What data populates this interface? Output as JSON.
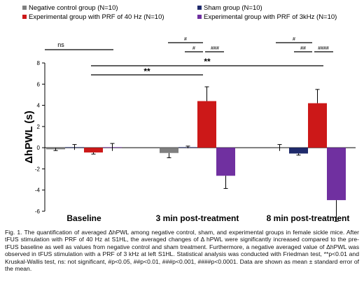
{
  "chart_data": {
    "type": "bar",
    "ylabel": "ΔhPWL (s)",
    "ylim": [
      -6,
      8
    ],
    "yticks": [
      -6,
      -4,
      -2,
      0,
      2,
      4,
      6,
      8
    ],
    "grid": false,
    "legend_position": "top",
    "categories": [
      "Baseline",
      "3 min post-treatment",
      "8 min post-treatment"
    ],
    "series": [
      {
        "name": "Negative control group (N=10)",
        "color": "#7f7f7f",
        "values": [
          -0.15,
          -0.5,
          0.0
        ],
        "errors": [
          0.12,
          0.45,
          0.3
        ]
      },
      {
        "name": "Sham group (N=10)",
        "color": "#1f2a6b",
        "values": [
          0.05,
          0.05,
          -0.55
        ],
        "errors": [
          0.25,
          0.1,
          0.15
        ]
      },
      {
        "name": "Experimental group with PRF of 40 Hz (N=10)",
        "color": "#cc1818",
        "values": [
          -0.45,
          4.4,
          4.2
        ],
        "errors": [
          0.15,
          1.35,
          1.3
        ]
      },
      {
        "name": "Experimental group with PRF of 3kHz (N=10)",
        "color": "#7030a0",
        "values": [
          0.05,
          -2.65,
          -4.95
        ],
        "errors": [
          0.35,
          1.2,
          2.0
        ]
      }
    ],
    "annotations": [
      {
        "text": "ns",
        "comparison": "Baseline: between groups"
      },
      {
        "text": "**",
        "comparison": "40 Hz: Baseline vs 3 min post-treatment"
      },
      {
        "text": "**",
        "comparison": "40 Hz: Baseline vs 8 min post-treatment"
      },
      {
        "text": "#",
        "comparison": "3 min post-treatment: negative control vs 40 Hz"
      },
      {
        "text": "#",
        "comparison": "3 min post-treatment: sham vs 40 Hz"
      },
      {
        "text": "###",
        "comparison": "3 min post-treatment: 40 Hz vs 3kHz"
      },
      {
        "text": "#",
        "comparison": "8 min post-treatment: negative control vs 40 Hz"
      },
      {
        "text": "##",
        "comparison": "8 min post-treatment: sham vs 40 Hz"
      },
      {
        "text": "####",
        "comparison": "8 min post-treatment: 40 Hz vs 3kHz"
      }
    ]
  },
  "caption": {
    "text": "Fig. 1. The quantification of averaged ΔhPWL among negative control, sham, and experimental groups in female sickle mice. After tFUS stimulation with PRF of 40 Hz at S1HL, the averaged changes of Δ hPWL were significantly increased compared to the pre-tFUS baseline as well as values from negative control and sham treatment. Furthermore, a negative averaged value of ΔhPWL was observed in tFUS stimulation with a PRF of 3 kHz at left S1HL. Statistical analysis was conducted with Friedman test, **p<0.01 and Kruskal-Wallis test, ns: not significant, #p<0.05, ##p<0.01, ###p<0.001, ####p<0.0001. Data are shown as mean ± standard error of the mean."
  }
}
